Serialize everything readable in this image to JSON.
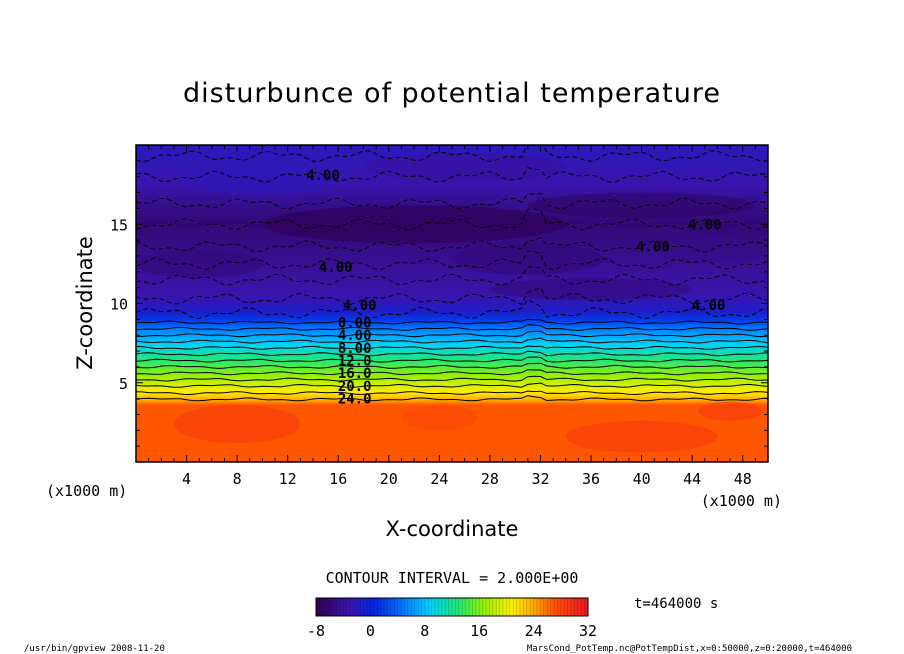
{
  "chart_data": {
    "type": "heatmap",
    "title": "disturbunce of potential temperature",
    "xlabel": "X-coordinate",
    "ylabel": "Z-coordinate",
    "x_unit_left": "(x1000 m)",
    "x_unit_right": "(x1000 m)",
    "xlim": [
      0,
      50
    ],
    "ylim": [
      0,
      20
    ],
    "x_ticks": [
      4,
      8,
      12,
      16,
      20,
      24,
      28,
      32,
      36,
      40,
      44,
      48
    ],
    "y_ticks": [
      5,
      10,
      15
    ],
    "contour_interval_text": "CONTOUR INTERVAL = 2.000E+00",
    "time_text": "t=464000 s",
    "colorbar": {
      "range": [
        -8,
        32
      ],
      "tick_labels": [
        -8,
        0,
        8,
        16,
        24,
        32
      ]
    },
    "contour_labels": [
      {
        "text": "4.00",
        "x": 14.8,
        "z": 18.1
      },
      {
        "text": "4.00",
        "x": 45.0,
        "z": 15.0
      },
      {
        "text": "4.00",
        "x": 40.9,
        "z": 13.6
      },
      {
        "text": "4.00",
        "x": 15.8,
        "z": 12.3
      },
      {
        "text": "4.00",
        "x": 17.7,
        "z": 9.9
      },
      {
        "text": "4.00",
        "x": 45.3,
        "z": 9.9
      },
      {
        "text": "0.00",
        "x": 17.3,
        "z": 8.8
      },
      {
        "text": "4.00",
        "x": 17.3,
        "z": 8.0
      },
      {
        "text": "8.00",
        "x": 17.3,
        "z": 7.2
      },
      {
        "text": "12.0",
        "x": 17.3,
        "z": 6.4
      },
      {
        "text": "16.0",
        "x": 17.3,
        "z": 5.6
      },
      {
        "text": "20.0",
        "x": 17.3,
        "z": 4.8
      },
      {
        "text": "24.0",
        "x": 17.3,
        "z": 4.0
      }
    ],
    "field_profile": [
      {
        "z": 0,
        "value": 27
      },
      {
        "z": 3.6,
        "value": 27
      },
      {
        "z": 3.9,
        "value": 24
      },
      {
        "z": 4.4,
        "value": 21
      },
      {
        "z": 4.9,
        "value": 19
      },
      {
        "z": 5.4,
        "value": 17
      },
      {
        "z": 5.9,
        "value": 15
      },
      {
        "z": 6.4,
        "value": 13
      },
      {
        "z": 6.9,
        "value": 11
      },
      {
        "z": 7.4,
        "value": 9
      },
      {
        "z": 7.9,
        "value": 7
      },
      {
        "z": 8.4,
        "value": 5
      },
      {
        "z": 8.9,
        "value": 2
      },
      {
        "z": 9.4,
        "value": -1
      },
      {
        "z": 10.5,
        "value": -3
      },
      {
        "z": 12.0,
        "value": -4
      },
      {
        "z": 13.5,
        "value": -5
      },
      {
        "z": 15.0,
        "value": -6
      },
      {
        "z": 16.0,
        "value": -5
      },
      {
        "z": 17.5,
        "value": -3
      },
      {
        "z": 20.0,
        "value": -2
      }
    ]
  },
  "footer": {
    "left": "/usr/bin/gpview  2008-11-20",
    "right": "MarsCond_PotTemp.nc@PotTempDist,x=0:50000,z=0:20000,t=464000"
  }
}
